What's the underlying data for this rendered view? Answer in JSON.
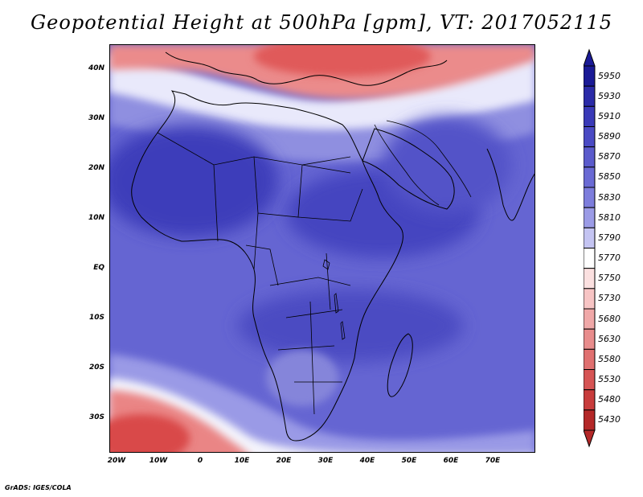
{
  "title": "Geopotential Height at 500hPa [gpm], VT: 2017052115",
  "footer": "GrADS: IGES/COLA",
  "lat_labels": [
    "40N",
    "30N",
    "20N",
    "10N",
    "EQ",
    "10S",
    "20S",
    "30S"
  ],
  "lon_labels": [
    "20W",
    "10W",
    "0",
    "10E",
    "20E",
    "30E",
    "40E",
    "50E",
    "60E",
    "70E"
  ],
  "colorbar": {
    "levels": [
      "5950",
      "5930",
      "5910",
      "5890",
      "5870",
      "5850",
      "5830",
      "5810",
      "5790",
      "5770",
      "5750",
      "5730",
      "5680",
      "5630",
      "5580",
      "5530",
      "5480",
      "5430"
    ],
    "colors": [
      "#1a1a96",
      "#2b2ba8",
      "#3a3ab8",
      "#4a4ac4",
      "#5b5bcc",
      "#6a6ad4",
      "#7d7ddc",
      "#9b9be6",
      "#c4c4f2",
      "#ffffff",
      "#fbe0e0",
      "#f7c4c4",
      "#f0a8a8",
      "#e88c8c",
      "#e07070",
      "#d65454",
      "#c83c3c",
      "#b42828"
    ]
  },
  "map": {
    "region": "Africa",
    "field": "500hPa geopotential height",
    "colors": {
      "ocean_base": "#5f5fcf",
      "high_core": "#3a3ab8",
      "north_warm": "#e26f6f",
      "south_warm": "#e05c5c",
      "boundary_white": "#fafaff"
    }
  }
}
